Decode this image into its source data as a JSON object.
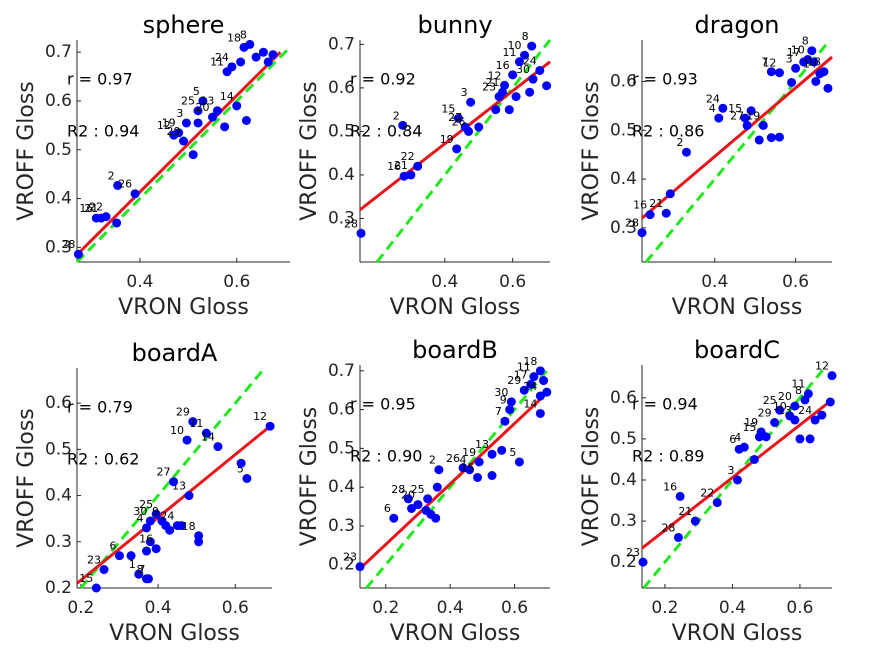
{
  "chart_data": [
    {
      "type": "scatter",
      "title": "sphere",
      "x_label": "VRON Gloss",
      "y_label": "VROFF Gloss",
      "annotations": [
        "r = 0.97",
        "R2 : 0.94"
      ],
      "color": "#0000ff",
      "x": [
        0.273,
        0.31,
        0.32,
        0.33,
        0.352,
        0.354,
        0.39,
        0.47,
        0.48,
        0.49,
        0.496,
        0.52,
        0.51,
        0.53,
        0.52,
        0.55,
        0.575,
        0.56,
        0.6,
        0.58,
        0.59,
        0.608,
        0.627,
        0.615,
        0.64,
        0.655,
        0.665,
        0.675,
        0.62
      ],
      "y": [
        0.286,
        0.36,
        0.36,
        0.363,
        0.35,
        0.427,
        0.41,
        0.53,
        0.535,
        0.518,
        0.555,
        0.555,
        0.49,
        0.6,
        0.58,
        0.567,
        0.547,
        0.58,
        0.59,
        0.66,
        0.67,
        0.68,
        0.716,
        0.71,
        0.69,
        0.7,
        0.68,
        0.695,
        0.56
      ],
      "point_labels": [
        28,
        16,
        21,
        22,
        null,
        2,
        26,
        12,
        19,
        29,
        3,
        null,
        null,
        5,
        25,
        20,
        null,
        13,
        14,
        11,
        24,
        null,
        8,
        18,
        null,
        null,
        null,
        null,
        null
      ],
      "xlim": [
        0.27,
        0.71
      ],
      "ylim": [
        0.27,
        0.725
      ],
      "xticks": [
        0.4,
        0.6
      ],
      "yticks": [
        0.3,
        0.4,
        0.5,
        0.6,
        0.7
      ],
      "fit_line": {
        "color": "#e8141a",
        "x": [
          0.27,
          0.69
        ],
        "y": [
          0.285,
          0.7
        ]
      },
      "identity_line": {
        "color": "#22e81e",
        "x": [
          0.27,
          0.71
        ],
        "y": [
          0.27,
          0.71
        ]
      }
    },
    {
      "type": "scatter",
      "title": "bunny",
      "x_label": "VRON Gloss",
      "y_label": "VROFF Gloss",
      "annotations": [
        "r = 0.92",
        "R2 : 0.84"
      ],
      "color": "#0000ff",
      "x": [
        0.153,
        0.28,
        0.3,
        0.276,
        0.32,
        0.435,
        0.44,
        0.46,
        0.47,
        0.476,
        0.55,
        0.56,
        0.57,
        0.576,
        0.6,
        0.59,
        0.61,
        0.65,
        0.66,
        0.656,
        0.635,
        0.62,
        0.68,
        0.7,
        0.5
      ],
      "y": [
        0.266,
        0.397,
        0.4,
        0.514,
        0.42,
        0.46,
        0.53,
        0.51,
        0.5,
        0.567,
        0.55,
        0.58,
        0.59,
        0.606,
        0.63,
        0.55,
        0.58,
        0.59,
        0.62,
        0.696,
        0.675,
        0.66,
        0.64,
        0.605,
        0.51
      ],
      "point_labels": [
        28,
        16,
        21,
        2,
        22,
        19,
        15,
        27,
        26,
        3,
        null,
        23,
        21,
        12,
        16,
        null,
        null,
        null,
        30,
        8,
        10,
        11,
        24,
        null,
        null
      ],
      "xlim": [
        0.15,
        0.71
      ],
      "ylim": [
        0.2,
        0.71
      ],
      "xticks": [
        0.4,
        0.6
      ],
      "yticks": [
        0.3,
        0.4,
        0.5,
        0.6,
        0.7
      ],
      "fit_line": {
        "color": "#e8141a",
        "x": [
          0.15,
          0.71
        ],
        "y": [
          0.32,
          0.66
        ]
      },
      "identity_line": {
        "color": "#22e81e",
        "x": [
          0.2,
          0.71
        ],
        "y": [
          0.2,
          0.71
        ]
      }
    },
    {
      "type": "scatter",
      "title": "dragon",
      "x_label": "VRON Gloss",
      "y_label": "VROFF Gloss",
      "annotations": [
        "r = 0.93",
        "R2 : 0.86"
      ],
      "color": "#0000ff",
      "x": [
        0.22,
        0.24,
        0.28,
        0.29,
        0.33,
        0.41,
        0.42,
        0.475,
        0.48,
        0.49,
        0.51,
        0.54,
        0.56,
        0.52,
        0.54,
        0.56,
        0.59,
        0.6,
        0.62,
        0.63,
        0.64,
        0.66,
        0.645,
        0.68,
        0.67,
        0.65
      ],
      "y": [
        0.29,
        0.327,
        0.33,
        0.37,
        0.455,
        0.525,
        0.545,
        0.525,
        0.51,
        0.54,
        0.48,
        0.485,
        0.486,
        0.51,
        0.62,
        0.618,
        0.598,
        0.627,
        0.64,
        0.645,
        0.663,
        0.616,
        0.64,
        0.586,
        0.62,
        0.6
      ],
      "point_labels": [
        28,
        16,
        21,
        null,
        2,
        4,
        24,
        15,
        27,
        null,
        null,
        null,
        null,
        19,
        7,
        12,
        null,
        3,
        17,
        10,
        8,
        14,
        null,
        null,
        18,
        null
      ],
      "xlim": [
        0.22,
        0.69
      ],
      "ylim": [
        0.23,
        0.685
      ],
      "xticks": [
        0.4,
        0.6
      ],
      "yticks": [
        0.3,
        0.4,
        0.5,
        0.6
      ],
      "fit_line": {
        "color": "#e8141a",
        "x": [
          0.22,
          0.69
        ],
        "y": [
          0.32,
          0.65
        ]
      },
      "identity_line": {
        "color": "#22e81e",
        "x": [
          0.23,
          0.685
        ],
        "y": [
          0.23,
          0.685
        ]
      }
    },
    {
      "type": "scatter",
      "title": "boardA",
      "x_label": "VRON Gloss",
      "y_label": "VROFF Gloss",
      "annotations": [
        "r = 0.79",
        "R2 : 0.62"
      ],
      "color": "#0000ff",
      "x": [
        0.24,
        0.26,
        0.3,
        0.33,
        0.35,
        0.37,
        0.375,
        0.37,
        0.38,
        0.395,
        0.37,
        0.38,
        0.395,
        0.41,
        0.42,
        0.43,
        0.45,
        0.46,
        0.48,
        0.44,
        0.475,
        0.49,
        0.525,
        0.555,
        0.505,
        0.505,
        0.63,
        0.615,
        0.69
      ],
      "y": [
        0.2,
        0.24,
        0.27,
        0.27,
        0.23,
        0.22,
        0.22,
        0.28,
        0.3,
        0.285,
        0.33,
        0.345,
        0.36,
        0.345,
        0.335,
        0.325,
        0.335,
        0.335,
        0.4,
        0.43,
        0.52,
        0.56,
        0.535,
        0.506,
        0.313,
        0.3,
        0.437,
        0.47,
        0.55
      ],
      "point_labels": [
        15,
        23,
        6,
        null,
        1,
        8,
        7,
        null,
        null,
        16,
        4,
        30,
        25,
        9,
        null,
        null,
        24,
        null,
        13,
        27,
        10,
        29,
        11,
        14,
        18,
        null,
        5,
        null,
        12
      ],
      "xlim": [
        0.19,
        0.695
      ],
      "ylim": [
        0.2,
        0.676
      ],
      "xticks": [
        0.2,
        0.4,
        0.6
      ],
      "yticks": [
        0.2,
        0.3,
        0.4,
        0.5,
        0.6
      ],
      "fit_line": {
        "color": "#e8141a",
        "x": [
          0.19,
          0.69
        ],
        "y": [
          0.21,
          0.55
        ]
      },
      "identity_line": {
        "color": "#22e81e",
        "x": [
          0.2,
          0.676
        ],
        "y": [
          0.2,
          0.676
        ]
      }
    },
    {
      "type": "scatter",
      "title": "boardB",
      "x_label": "VRON Gloss",
      "y_label": "VROFF Gloss",
      "annotations": [
        "r = 0.95",
        "R2 : 0.90"
      ],
      "color": "#0000ff",
      "x": [
        0.12,
        0.225,
        0.27,
        0.3,
        0.28,
        0.325,
        0.34,
        0.355,
        0.33,
        0.36,
        0.365,
        0.44,
        0.46,
        0.49,
        0.485,
        0.53,
        0.53,
        0.56,
        0.615,
        0.57,
        0.585,
        0.59,
        0.63,
        0.65,
        0.66,
        0.68,
        0.69,
        0.68,
        0.68,
        0.7
      ],
      "y": [
        0.195,
        0.32,
        0.37,
        0.355,
        0.345,
        0.34,
        0.33,
        0.32,
        0.37,
        0.4,
        0.445,
        0.45,
        0.445,
        0.465,
        0.425,
        0.485,
        0.43,
        0.495,
        0.465,
        0.57,
        0.6,
        0.62,
        0.65,
        0.665,
        0.685,
        0.7,
        0.675,
        0.635,
        0.59,
        0.645
      ],
      "point_labels": [
        23,
        6,
        28,
        20,
        null,
        null,
        null,
        null,
        25,
        null,
        2,
        26,
        4,
        19,
        15,
        13,
        null,
        null,
        5,
        7,
        9,
        30,
        29,
        17,
        11,
        18,
        null,
        24,
        14,
        null
      ],
      "xlim": [
        0.12,
        0.71
      ],
      "ylim": [
        0.14,
        0.715
      ],
      "xticks": [
        0.2,
        0.4,
        0.6
      ],
      "yticks": [
        0.2,
        0.3,
        0.4,
        0.5,
        0.6,
        0.7
      ],
      "fit_line": {
        "color": "#e8141a",
        "x": [
          0.12,
          0.71
        ],
        "y": [
          0.19,
          0.65
        ]
      },
      "identity_line": {
        "color": "#22e81e",
        "x": [
          0.14,
          0.71
        ],
        "y": [
          0.14,
          0.71
        ]
      }
    },
    {
      "type": "scatter",
      "title": "boardC",
      "x_label": "VRON Gloss",
      "y_label": "VROFF Gloss",
      "annotations": [
        "r = 0.94",
        "R2 : 0.89"
      ],
      "color": "#0000ff",
      "x": [
        0.135,
        0.24,
        0.245,
        0.29,
        0.355,
        0.415,
        0.42,
        0.435,
        0.465,
        0.48,
        0.485,
        0.5,
        0.525,
        0.54,
        0.57,
        0.585,
        0.6,
        0.63,
        0.645,
        0.615,
        0.585,
        0.665,
        0.69,
        0.695,
        0.625
      ],
      "y": [
        0.2,
        0.26,
        0.36,
        0.3,
        0.345,
        0.4,
        0.475,
        0.48,
        0.45,
        0.505,
        0.517,
        0.505,
        0.54,
        0.57,
        0.556,
        0.58,
        0.5,
        0.5,
        0.546,
        0.595,
        0.546,
        0.558,
        0.59,
        0.654,
        0.61
      ],
      "point_labels": [
        23,
        28,
        16,
        21,
        22,
        3,
        6,
        4,
        null,
        15,
        19,
        null,
        29,
        25,
        10,
        20,
        null,
        null,
        24,
        8,
        13,
        null,
        null,
        12,
        11
      ],
      "xlim": [
        0.132,
        0.695
      ],
      "ylim": [
        0.137,
        0.68
      ],
      "xticks": [
        0.2,
        0.4,
        0.6
      ],
      "yticks": [
        0.2,
        0.3,
        0.4,
        0.5,
        0.6
      ],
      "fit_line": {
        "color": "#e8141a",
        "x": [
          0.132,
          0.695
        ],
        "y": [
          0.234,
          0.595
        ]
      },
      "identity_line": {
        "color": "#22e81e",
        "x": [
          0.137,
          0.68
        ],
        "y": [
          0.137,
          0.68
        ]
      }
    }
  ]
}
